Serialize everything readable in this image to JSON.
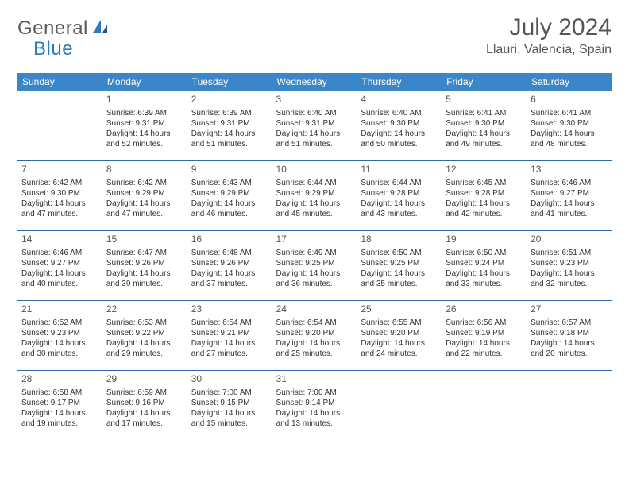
{
  "logo": {
    "general": "General",
    "blue": "Blue"
  },
  "title": "July 2024",
  "location": "Llauri, Valencia, Spain",
  "headers": {
    "bg": "#3a86c8",
    "fg": "#ffffff",
    "row_border": "#2f6aa0",
    "fontsize": 12
  },
  "day_labels": [
    "Sunday",
    "Monday",
    "Tuesday",
    "Wednesday",
    "Thursday",
    "Friday",
    "Saturday"
  ],
  "cell_style": {
    "daynum_fontsize": 12,
    "detail_fontsize": 10,
    "text_color": "#333333"
  },
  "weeks": [
    [
      null,
      {
        "n": "1",
        "sr": "6:39 AM",
        "ss": "9:31 PM",
        "dl": "14 hours and 52 minutes."
      },
      {
        "n": "2",
        "sr": "6:39 AM",
        "ss": "9:31 PM",
        "dl": "14 hours and 51 minutes."
      },
      {
        "n": "3",
        "sr": "6:40 AM",
        "ss": "9:31 PM",
        "dl": "14 hours and 51 minutes."
      },
      {
        "n": "4",
        "sr": "6:40 AM",
        "ss": "9:30 PM",
        "dl": "14 hours and 50 minutes."
      },
      {
        "n": "5",
        "sr": "6:41 AM",
        "ss": "9:30 PM",
        "dl": "14 hours and 49 minutes."
      },
      {
        "n": "6",
        "sr": "6:41 AM",
        "ss": "9:30 PM",
        "dl": "14 hours and 48 minutes."
      }
    ],
    [
      {
        "n": "7",
        "sr": "6:42 AM",
        "ss": "9:30 PM",
        "dl": "14 hours and 47 minutes."
      },
      {
        "n": "8",
        "sr": "6:42 AM",
        "ss": "9:29 PM",
        "dl": "14 hours and 47 minutes."
      },
      {
        "n": "9",
        "sr": "6:43 AM",
        "ss": "9:29 PM",
        "dl": "14 hours and 46 minutes."
      },
      {
        "n": "10",
        "sr": "6:44 AM",
        "ss": "9:29 PM",
        "dl": "14 hours and 45 minutes."
      },
      {
        "n": "11",
        "sr": "6:44 AM",
        "ss": "9:28 PM",
        "dl": "14 hours and 43 minutes."
      },
      {
        "n": "12",
        "sr": "6:45 AM",
        "ss": "9:28 PM",
        "dl": "14 hours and 42 minutes."
      },
      {
        "n": "13",
        "sr": "6:46 AM",
        "ss": "9:27 PM",
        "dl": "14 hours and 41 minutes."
      }
    ],
    [
      {
        "n": "14",
        "sr": "6:46 AM",
        "ss": "9:27 PM",
        "dl": "14 hours and 40 minutes."
      },
      {
        "n": "15",
        "sr": "6:47 AM",
        "ss": "9:26 PM",
        "dl": "14 hours and 39 minutes."
      },
      {
        "n": "16",
        "sr": "6:48 AM",
        "ss": "9:26 PM",
        "dl": "14 hours and 37 minutes."
      },
      {
        "n": "17",
        "sr": "6:49 AM",
        "ss": "9:25 PM",
        "dl": "14 hours and 36 minutes."
      },
      {
        "n": "18",
        "sr": "6:50 AM",
        "ss": "9:25 PM",
        "dl": "14 hours and 35 minutes."
      },
      {
        "n": "19",
        "sr": "6:50 AM",
        "ss": "9:24 PM",
        "dl": "14 hours and 33 minutes."
      },
      {
        "n": "20",
        "sr": "6:51 AM",
        "ss": "9:23 PM",
        "dl": "14 hours and 32 minutes."
      }
    ],
    [
      {
        "n": "21",
        "sr": "6:52 AM",
        "ss": "9:23 PM",
        "dl": "14 hours and 30 minutes."
      },
      {
        "n": "22",
        "sr": "6:53 AM",
        "ss": "9:22 PM",
        "dl": "14 hours and 29 minutes."
      },
      {
        "n": "23",
        "sr": "6:54 AM",
        "ss": "9:21 PM",
        "dl": "14 hours and 27 minutes."
      },
      {
        "n": "24",
        "sr": "6:54 AM",
        "ss": "9:20 PM",
        "dl": "14 hours and 25 minutes."
      },
      {
        "n": "25",
        "sr": "6:55 AM",
        "ss": "9:20 PM",
        "dl": "14 hours and 24 minutes."
      },
      {
        "n": "26",
        "sr": "6:56 AM",
        "ss": "9:19 PM",
        "dl": "14 hours and 22 minutes."
      },
      {
        "n": "27",
        "sr": "6:57 AM",
        "ss": "9:18 PM",
        "dl": "14 hours and 20 minutes."
      }
    ],
    [
      {
        "n": "28",
        "sr": "6:58 AM",
        "ss": "9:17 PM",
        "dl": "14 hours and 19 minutes."
      },
      {
        "n": "29",
        "sr": "6:59 AM",
        "ss": "9:16 PM",
        "dl": "14 hours and 17 minutes."
      },
      {
        "n": "30",
        "sr": "7:00 AM",
        "ss": "9:15 PM",
        "dl": "14 hours and 15 minutes."
      },
      {
        "n": "31",
        "sr": "7:00 AM",
        "ss": "9:14 PM",
        "dl": "14 hours and 13 minutes."
      },
      null,
      null,
      null
    ]
  ],
  "labels": {
    "sunrise": "Sunrise: ",
    "sunset": "Sunset: ",
    "daylight": "Daylight: "
  }
}
